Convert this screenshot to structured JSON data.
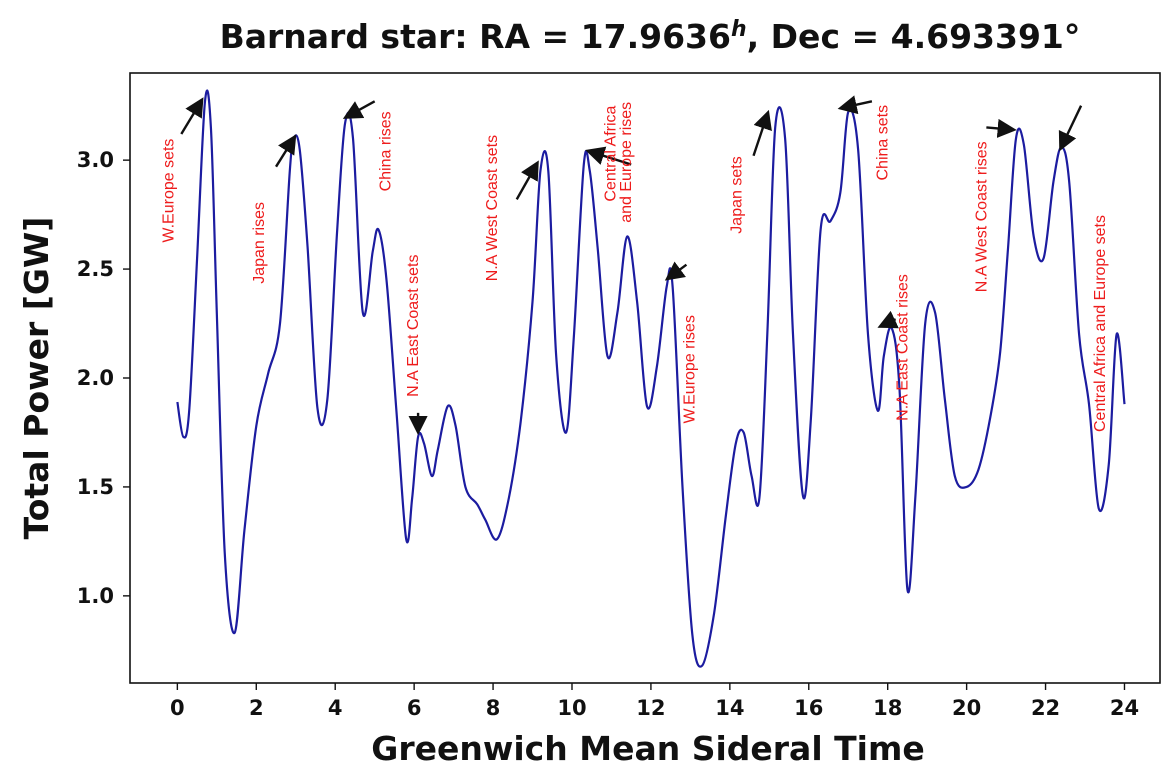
{
  "chart_data": {
    "type": "line",
    "title_prefix": "Barnard star: RA = 17.9636",
    "title_sup": "h",
    "title_suffix": ", Dec = 4.693391°",
    "xlabel": "Greenwich Mean Sideral Time",
    "ylabel": "Total Power [GW]",
    "xlim": [
      -1.2,
      24.9
    ],
    "ylim": [
      0.6,
      3.4
    ],
    "xticks": [
      "0",
      "2",
      "4",
      "6",
      "8",
      "10",
      "12",
      "14",
      "16",
      "18",
      "20",
      "22",
      "24"
    ],
    "yticks": [
      "1.0",
      "1.5",
      "2.0",
      "2.5",
      "3.0"
    ],
    "grid": false,
    "series": [
      {
        "color": "#1c1ca0",
        "x": [
          0.0,
          0.15,
          0.3,
          0.5,
          0.7,
          0.85,
          1.0,
          1.2,
          1.45,
          1.7,
          2.0,
          2.3,
          2.6,
          2.85,
          2.95,
          3.1,
          3.3,
          3.55,
          3.8,
          4.05,
          4.25,
          4.45,
          4.7,
          4.95,
          5.1,
          5.3,
          5.55,
          5.8,
          5.95,
          6.1,
          6.25,
          6.45,
          6.6,
          6.85,
          7.05,
          7.3,
          7.6,
          7.8,
          8.1,
          8.4,
          8.7,
          9.0,
          9.2,
          9.4,
          9.6,
          9.85,
          10.05,
          10.3,
          10.45,
          10.65,
          10.9,
          11.15,
          11.4,
          11.65,
          11.9,
          12.15,
          12.4,
          12.55,
          12.8,
          13.05,
          13.3,
          13.6,
          13.9,
          14.15,
          14.35,
          14.55,
          14.75,
          14.95,
          15.15,
          15.4,
          15.6,
          15.85,
          16.05,
          16.3,
          16.55,
          16.8,
          17.0,
          17.25,
          17.5,
          17.75,
          17.9,
          18.1,
          18.3,
          18.5,
          18.7,
          18.95,
          19.2,
          19.45,
          19.7,
          20.0,
          20.3,
          20.6,
          20.85,
          21.05,
          21.25,
          21.45,
          21.7,
          21.95,
          22.2,
          22.4,
          22.6,
          22.85,
          23.1,
          23.35,
          23.6,
          23.8,
          24.0
        ],
        "y": [
          1.89,
          1.73,
          1.85,
          2.55,
          3.27,
          3.15,
          2.3,
          1.2,
          0.83,
          1.3,
          1.78,
          2.02,
          2.25,
          2.95,
          3.1,
          3.05,
          2.6,
          1.86,
          1.9,
          2.68,
          3.17,
          3.1,
          2.3,
          2.58,
          2.68,
          2.45,
          1.85,
          1.26,
          1.45,
          1.73,
          1.7,
          1.55,
          1.67,
          1.87,
          1.78,
          1.5,
          1.42,
          1.35,
          1.26,
          1.45,
          1.8,
          2.35,
          2.95,
          2.95,
          2.1,
          1.75,
          2.2,
          2.98,
          2.95,
          2.6,
          2.1,
          2.3,
          2.65,
          2.35,
          1.87,
          2.05,
          2.42,
          2.42,
          1.5,
          0.82,
          0.68,
          0.92,
          1.37,
          1.7,
          1.75,
          1.55,
          1.45,
          2.2,
          3.15,
          3.1,
          2.2,
          1.46,
          1.8,
          2.68,
          2.72,
          2.85,
          3.22,
          3.05,
          2.2,
          1.85,
          2.1,
          2.23,
          1.95,
          1.03,
          1.45,
          2.25,
          2.3,
          1.9,
          1.55,
          1.5,
          1.58,
          1.82,
          2.12,
          2.6,
          3.1,
          3.07,
          2.65,
          2.55,
          2.9,
          3.06,
          2.9,
          2.2,
          1.88,
          1.4,
          1.6,
          2.2,
          1.88
        ]
      }
    ],
    "annotations": [
      {
        "text": "W.Europe sets",
        "x": -0.1,
        "y": 2.86
      },
      {
        "text": "Japan rises",
        "x": 2.2,
        "y": 2.62
      },
      {
        "text": "China rises",
        "x": 5.4,
        "y": 3.04
      },
      {
        "text": "N.A East Coast sets",
        "x": 6.1,
        "y": 2.24
      },
      {
        "text": "N.A West Coast sets",
        "x": 8.1,
        "y": 2.78
      },
      {
        "text": "Central Africa",
        "x": 11.1,
        "y": 3.03
      },
      {
        "text": "and Europe rises",
        "x": 11.5,
        "y": 2.99
      },
      {
        "text": "W.Europe rises",
        "x": 13.1,
        "y": 2.04
      },
      {
        "text": "Japan sets",
        "x": 14.3,
        "y": 2.84
      },
      {
        "text": "China sets",
        "x": 18.0,
        "y": 3.08
      },
      {
        "text": "N.A East Coast rises",
        "x": 18.5,
        "y": 2.14
      },
      {
        "text": "N.A West Coast rises",
        "x": 20.5,
        "y": 2.74
      },
      {
        "text": "Central Africa and Europe sets",
        "x": 23.5,
        "y": 2.25
      }
    ],
    "arrows": [
      {
        "x1": 0.1,
        "y1": 3.12,
        "x2": 0.6,
        "y2": 3.27
      },
      {
        "x1": 2.5,
        "y1": 2.97,
        "x2": 2.95,
        "y2": 3.1
      },
      {
        "x1": 5.0,
        "y1": 3.27,
        "x2": 4.3,
        "y2": 3.2
      },
      {
        "x1": 6.1,
        "y1": 1.84,
        "x2": 6.1,
        "y2": 1.76
      },
      {
        "x1": 8.6,
        "y1": 2.82,
        "x2": 9.1,
        "y2": 2.98
      },
      {
        "x1": 11.5,
        "y1": 2.98,
        "x2": 10.45,
        "y2": 3.04
      },
      {
        "x1": 12.9,
        "y1": 2.52,
        "x2": 12.45,
        "y2": 2.46
      },
      {
        "x1": 14.6,
        "y1": 3.02,
        "x2": 14.95,
        "y2": 3.21
      },
      {
        "x1": 17.6,
        "y1": 3.27,
        "x2": 16.85,
        "y2": 3.24
      },
      {
        "x1": 18.2,
        "y1": 2.27,
        "x2": 17.85,
        "y2": 2.24
      },
      {
        "x1": 20.5,
        "y1": 3.15,
        "x2": 21.15,
        "y2": 3.14
      },
      {
        "x1": 22.9,
        "y1": 3.25,
        "x2": 22.4,
        "y2": 3.06
      }
    ]
  }
}
